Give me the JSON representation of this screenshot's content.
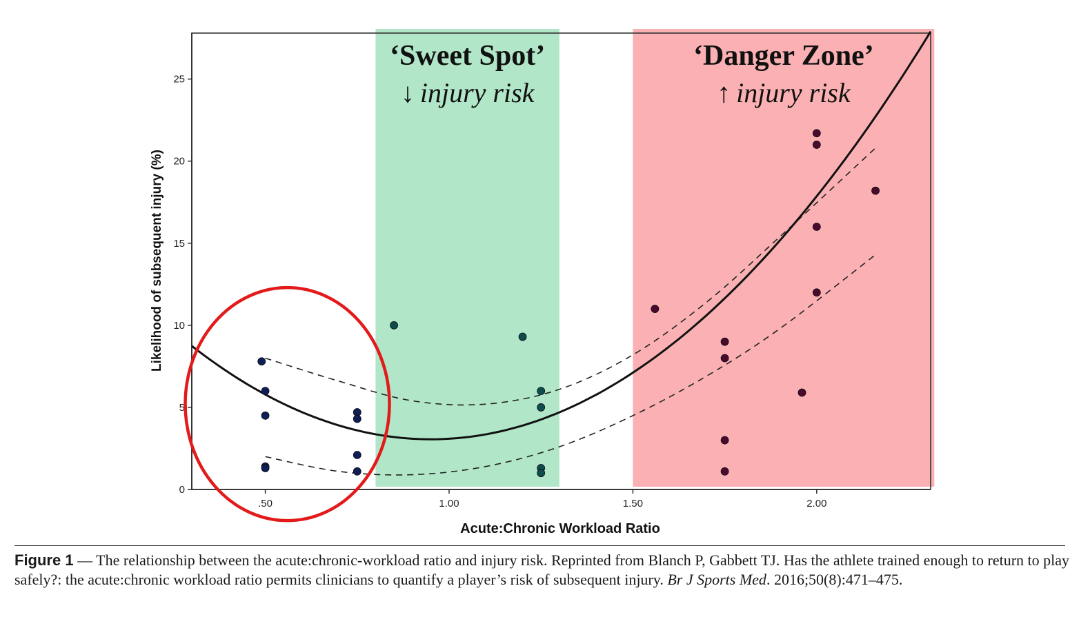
{
  "chart_data": {
    "type": "scatter",
    "xlabel": "Acute:Chronic Workload Ratio",
    "ylabel": "Likelihood of subsequent injury (%)",
    "xlim": [
      0.3,
      2.31
    ],
    "ylim": [
      0,
      27.8
    ],
    "x_ticks": [
      {
        "value": 0.5,
        "label": ".50"
      },
      {
        "value": 1.0,
        "label": "1.00"
      },
      {
        "value": 1.5,
        "label": "1.50"
      },
      {
        "value": 2.0,
        "label": "2.00"
      }
    ],
    "y_ticks": [
      {
        "value": 0,
        "label": "0"
      },
      {
        "value": 5,
        "label": "5"
      },
      {
        "value": 10,
        "label": "10"
      },
      {
        "value": 15,
        "label": "15"
      },
      {
        "value": 20,
        "label": "20"
      },
      {
        "value": 25,
        "label": "25"
      }
    ],
    "zones": [
      {
        "name": "sweet-spot",
        "x_from": 0.8,
        "x_to": 1.3,
        "color": "#b1e6c8",
        "title": "‘Sweet Spot’",
        "arrow": "↓",
        "subtitle": "injury risk"
      },
      {
        "name": "danger-zone",
        "x_from": 1.5,
        "x_to": 2.32,
        "color": "#fbb1b3",
        "title": "‘Danger Zone’",
        "arrow": "↑",
        "subtitle": "injury risk"
      }
    ],
    "points": [
      {
        "x": 0.49,
        "y": 7.8
      },
      {
        "x": 0.5,
        "y": 6.0
      },
      {
        "x": 0.5,
        "y": 4.5
      },
      {
        "x": 0.5,
        "y": 1.4
      },
      {
        "x": 0.5,
        "y": 1.3
      },
      {
        "x": 0.75,
        "y": 4.7
      },
      {
        "x": 0.75,
        "y": 4.3
      },
      {
        "x": 0.75,
        "y": 2.1
      },
      {
        "x": 0.75,
        "y": 1.1
      },
      {
        "x": 0.85,
        "y": 10.0
      },
      {
        "x": 1.2,
        "y": 9.3
      },
      {
        "x": 1.25,
        "y": 6.0
      },
      {
        "x": 1.25,
        "y": 5.0
      },
      {
        "x": 1.25,
        "y": 1.3
      },
      {
        "x": 1.25,
        "y": 1.0
      },
      {
        "x": 1.56,
        "y": 11.0
      },
      {
        "x": 1.75,
        "y": 9.0
      },
      {
        "x": 1.75,
        "y": 8.0
      },
      {
        "x": 1.75,
        "y": 3.0
      },
      {
        "x": 1.75,
        "y": 1.1
      },
      {
        "x": 1.96,
        "y": 5.9
      },
      {
        "x": 2.0,
        "y": 21.7
      },
      {
        "x": 2.0,
        "y": 21.0
      },
      {
        "x": 2.0,
        "y": 16.0
      },
      {
        "x": 2.0,
        "y": 12.0
      },
      {
        "x": 2.16,
        "y": 18.2
      }
    ],
    "fit_curve": {
      "type": "quadratic",
      "coefficients": [
        15.2,
        -25.55,
        13.44
      ],
      "x_range": [
        0.3,
        2.31
      ]
    },
    "confidence_band": {
      "upper": {
        "x": [
          0.5,
          0.7,
          0.9,
          1.1,
          1.3,
          1.5,
          1.7,
          1.9,
          2.16
        ],
        "y": [
          8.0,
          6.6,
          5.4,
          5.2,
          6.1,
          8.2,
          11.4,
          15.4,
          20.8
        ]
      },
      "lower": {
        "x": [
          0.5,
          0.7,
          0.9,
          1.1,
          1.3,
          1.5,
          1.7,
          1.9,
          2.16
        ],
        "y": [
          2.0,
          1.1,
          0.9,
          1.4,
          2.6,
          4.5,
          6.9,
          9.8,
          14.3
        ]
      }
    },
    "highlight": {
      "shape": "circle",
      "color": "#e21a1a",
      "center_x": 0.56,
      "center_y": 5.2
    }
  },
  "caption": {
    "label": "Figure 1",
    "text": " — The relationship between the acute:chronic-workload ratio and injury risk. Reprinted from Blanch P, Gabbett TJ. Has the athlete trained enough to return to play safely?: the acute:chronic workload ratio permits clinicians to quantify a player’s risk of subsequent injury. ",
    "journal": "Br J Sports Med",
    "citation": ". 2016;50(8):471–475."
  }
}
